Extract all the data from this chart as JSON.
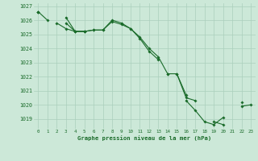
{
  "title": "Graphe pression niveau de la mer (hPa)",
  "background_color": "#cce8d8",
  "plot_bg_color": "#cce8d8",
  "grid_color": "#aacfbc",
  "line_color": "#1a6b2a",
  "x_ticks": [
    0,
    1,
    2,
    3,
    4,
    5,
    6,
    7,
    8,
    9,
    10,
    11,
    12,
    13,
    14,
    15,
    16,
    17,
    18,
    19,
    20,
    21,
    22,
    23
  ],
  "ylim": [
    1018.3,
    1027.2
  ],
  "yticks": [
    1019,
    1020,
    1021,
    1022,
    1023,
    1024,
    1025,
    1026,
    1027
  ],
  "series": [
    [
      1026.6,
      1026.0,
      null,
      1026.2,
      1025.2,
      1025.2,
      1025.3,
      1025.3,
      1026.0,
      1025.8,
      1025.4,
      1024.7,
      1023.8,
      1023.2,
      null,
      1022.2,
      1020.5,
      1020.3,
      null,
      1018.8,
      1018.6,
      null,
      1019.9,
      1020.0
    ],
    [
      1026.6,
      null,
      1025.8,
      1025.4,
      1025.2,
      1025.2,
      null,
      null,
      null,
      null,
      null,
      null,
      null,
      null,
      1022.2,
      null,
      1020.3,
      1019.6,
      1018.8,
      1018.6,
      1019.1,
      null,
      1020.2,
      null
    ],
    [
      1026.6,
      null,
      null,
      1025.8,
      1025.2,
      1025.2,
      1025.3,
      1025.3,
      1025.9,
      1025.7,
      1025.4,
      1024.8,
      1024.0,
      1023.4,
      1022.2,
      1022.2,
      1020.7,
      null,
      null,
      null,
      null,
      null,
      null,
      null
    ]
  ]
}
